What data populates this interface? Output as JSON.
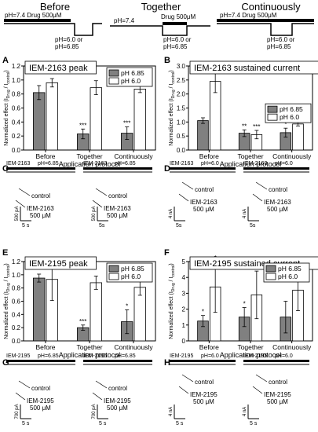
{
  "protocol": {
    "headers": [
      "Before",
      "Together",
      "Continuously"
    ],
    "labels": {
      "before_top": "pH=7.4  Drug 500μM",
      "before_bottom_1": "pH=6.0 or",
      "before_bottom_2": "pH=6.85",
      "together_top_left": "pH=7.4",
      "together_top_right": "Drug 500μM",
      "together_bottom_1": "pH=6.0 or",
      "together_bottom_2": "pH=6.85",
      "cont_top": "pH=7.4  Drug 500μM",
      "cont_bottom_1": "pH=6.0 or",
      "cont_bottom_2": "pH=6.85"
    }
  },
  "panel_letters": [
    "A",
    "B",
    "C",
    "D",
    "E",
    "F",
    "G",
    "H"
  ],
  "shared": {
    "ylabel": "Normalized effect (I",
    "ylabel_sub": "Drug",
    "ylabel_mid": " / I",
    "ylabel_sub2": "control",
    "ylabel_end": ")",
    "xlabel": "Application protocol",
    "categories": [
      "Before",
      "Together",
      "Continuously"
    ]
  },
  "chart_data": [
    {
      "panel": "A",
      "type": "bar",
      "title": "IEM-2163 peak",
      "categories": [
        "Before",
        "Together",
        "Continuously"
      ],
      "ylim": [
        0,
        1.2
      ],
      "yticks": [
        "0.0",
        "0.2",
        "0.4",
        "0.6",
        "0.8",
        "1.0",
        "1.2"
      ],
      "ytick_values": [
        0,
        0.2,
        0.4,
        0.6,
        0.8,
        1.0,
        1.2
      ],
      "legend_position": "top-right",
      "series": [
        {
          "name": "pH 6.85",
          "color": "#808080",
          "values": [
            0.82,
            0.23,
            0.24
          ],
          "errors": [
            0.1,
            0.07,
            0.09
          ]
        },
        {
          "name": "pH 6.0",
          "color": "#ffffff",
          "values": [
            0.96,
            0.89,
            0.87
          ],
          "errors": [
            0.06,
            0.1,
            0.05
          ]
        }
      ],
      "annotations": [
        {
          "series": 0,
          "index": 1,
          "text": "***"
        },
        {
          "series": 0,
          "index": 2,
          "text": "***"
        }
      ]
    },
    {
      "panel": "B",
      "type": "bar",
      "title": "IEM-2163 sustained current",
      "categories": [
        "Before",
        "Together",
        "Continuously"
      ],
      "ylim": [
        0,
        3.0
      ],
      "yticks": [
        "0.0",
        "0.5",
        "1.0",
        "1.5",
        "2.0",
        "2.5",
        "3.0"
      ],
      "ytick_values": [
        0,
        0.5,
        1.0,
        1.5,
        2.0,
        2.5,
        3.0
      ],
      "legend_position": "center-right",
      "series": [
        {
          "name": "pH 6.85",
          "color": "#808080",
          "values": [
            1.05,
            0.6,
            0.62
          ],
          "errors": [
            0.1,
            0.12,
            0.16
          ]
        },
        {
          "name": "pH 6.0",
          "color": "#ffffff",
          "values": [
            2.45,
            0.55,
            0.93
          ],
          "errors": [
            0.4,
            0.15,
            0.07
          ]
        }
      ],
      "annotations": [
        {
          "series": 1,
          "index": 0,
          "text": "***"
        },
        {
          "series": 0,
          "index": 1,
          "text": "**"
        },
        {
          "series": 1,
          "index": 1,
          "text": "***"
        },
        {
          "series": 0,
          "index": 2,
          "text": "*"
        }
      ]
    },
    {
      "panel": "E",
      "type": "bar",
      "title": "IEM-2195 peak",
      "categories": [
        "Before",
        "Together",
        "Continuously"
      ],
      "ylim": [
        0,
        1.2
      ],
      "yticks": [
        "0.0",
        "0.2",
        "0.4",
        "0.6",
        "0.8",
        "1.0",
        "1.2"
      ],
      "ytick_values": [
        0,
        0.2,
        0.4,
        0.6,
        0.8,
        1.0,
        1.2
      ],
      "legend_position": "top-right",
      "series": [
        {
          "name": "pH 6.85",
          "color": "#808080",
          "values": [
            0.95,
            0.2,
            0.29
          ],
          "errors": [
            0.06,
            0.04,
            0.18
          ]
        },
        {
          "name": "pH 6.0",
          "color": "#ffffff",
          "values": [
            0.93,
            0.88,
            0.81
          ],
          "errors": [
            0.32,
            0.1,
            0.12
          ]
        }
      ],
      "annotations": [
        {
          "series": 0,
          "index": 1,
          "text": "***"
        },
        {
          "series": 0,
          "index": 2,
          "text": "*"
        }
      ]
    },
    {
      "panel": "F",
      "type": "bar",
      "title": "IEM-2195 sustained current",
      "categories": [
        "Before",
        "Together",
        "Continuously"
      ],
      "ylim": [
        0,
        5
      ],
      "yticks": [
        "0",
        "1",
        "2",
        "3",
        "4",
        "5"
      ],
      "ytick_values": [
        0,
        1,
        2,
        3,
        4,
        5
      ],
      "legend_position": "top-right",
      "series": [
        {
          "name": "pH 6.85",
          "color": "#808080",
          "values": [
            1.25,
            1.5,
            1.5
          ],
          "errors": [
            0.35,
            0.6,
            1.0
          ]
        },
        {
          "name": "pH 6.0",
          "color": "#ffffff",
          "values": [
            3.4,
            2.9,
            3.2
          ],
          "errors": [
            1.6,
            1.5,
            1.3
          ]
        }
      ],
      "annotations": [
        {
          "series": 0,
          "index": 0,
          "text": "*"
        },
        {
          "series": 1,
          "index": 0,
          "text": "*"
        },
        {
          "series": 0,
          "index": 1,
          "text": "*"
        },
        {
          "series": 1,
          "index": 1,
          "text": "***"
        },
        {
          "series": 1,
          "index": 2,
          "text": "*"
        }
      ]
    }
  ],
  "traces": {
    "C": {
      "left": {
        "drug": "IEM-2163",
        "ph": "pH=6.85",
        "control": "control",
        "drug_label": "IEM-2163",
        "conc": "500 μM",
        "scale_y": "500 pA",
        "scale_x": "5 s"
      },
      "right": {
        "drug": "IEM-2163",
        "ph": "pH=6.85",
        "control": "control",
        "drug_label": "IEM-2163",
        "conc": "500 μM",
        "scale_y": "500 pA",
        "scale_x": "5s"
      }
    },
    "D": {
      "left": {
        "drug": "IEM-2163",
        "ph": "pH=6.0",
        "control": "control",
        "drug_label": "IEM-2163",
        "conc": "500 μM",
        "scale_y": "4 nA",
        "scale_x": "5s"
      },
      "right": {
        "drug": "IEM-2163",
        "ph": "pH=6.0",
        "control": "control",
        "drug_label": "IEM-2163",
        "conc": "500 μM",
        "scale_y": "4 nA",
        "scale_x": "5s"
      }
    },
    "G": {
      "left": {
        "drug": "IEM-2195",
        "ph": "pH=6.85",
        "control": "control",
        "drug_label": "IEM-2195",
        "conc": "500 μM",
        "scale_y": "700 pA",
        "scale_x": "5 s"
      },
      "right": {
        "drug": "IEM-2195",
        "ph": "pH=6.85",
        "control": "control",
        "drug_label": "IEM-2195",
        "conc": "500 μM",
        "scale_y": "700 pA",
        "scale_x": "5 s"
      }
    },
    "H": {
      "left": {
        "drug": "IEM-2195",
        "ph": "pH=6.0",
        "control": "control",
        "drug_label": "IEM-2195",
        "conc": "500 μM",
        "scale_y": "4 nA",
        "scale_x": "5 s"
      },
      "right": {
        "drug": "IEM-2195",
        "ph": "pH=6.0",
        "control": "control",
        "drug_label": "IEM-2195",
        "conc": "500 μM",
        "scale_y": "4 nA",
        "scale_x": "5 s"
      }
    }
  }
}
